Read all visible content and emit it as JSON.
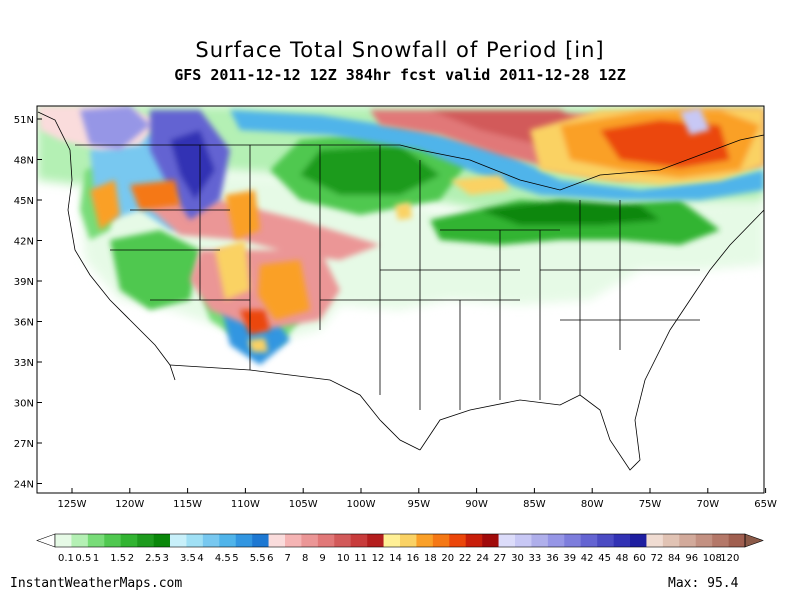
{
  "title": "Surface Total Snowfall of Period [in]",
  "subtitle": "GFS 2011-12-12 12Z 384hr fcst valid 2011-12-28 12Z",
  "footer": {
    "source": "InstantWeatherMaps.com",
    "max_label": "Max:",
    "max_value": "95.4"
  },
  "axes": {
    "lat_labels": [
      "51N",
      "48N",
      "45N",
      "42N",
      "39N",
      "36N",
      "33N",
      "30N",
      "27N",
      "24N"
    ],
    "lon_labels": [
      "125W",
      "120W",
      "115W",
      "110W",
      "105W",
      "100W",
      "95W",
      "90W",
      "85W",
      "80W",
      "75W",
      "70W",
      "65W"
    ]
  },
  "colorbar": {
    "levels": [
      "0.1",
      "0.5",
      "1",
      "1.5",
      "2",
      "2.5",
      "3",
      "3.5",
      "4",
      "4.5",
      "5",
      "5.5",
      "6",
      "7",
      "8",
      "9",
      "10",
      "11",
      "12",
      "14",
      "16",
      "18",
      "20",
      "22",
      "24",
      "27",
      "30",
      "33",
      "36",
      "39",
      "42",
      "45",
      "48",
      "60",
      "72",
      "84",
      "96",
      "108",
      "120"
    ],
    "colors": [
      "#e6fae6",
      "#b4f0b4",
      "#78dc78",
      "#50c850",
      "#32b432",
      "#1e9b1e",
      "#0a870a",
      "#c8f0fa",
      "#a0e0f5",
      "#78c8f0",
      "#50b4ea",
      "#3296e1",
      "#1e78d2",
      "#fadcdc",
      "#f5b4b4",
      "#eb9696",
      "#e17878",
      "#d25a5a",
      "#c83c3c",
      "#b41e1e",
      "#fff096",
      "#fad264",
      "#faa028",
      "#f57814",
      "#eb460a",
      "#c81e0a",
      "#a00a0a",
      "#dcdcfa",
      "#c8c8f5",
      "#afafeb",
      "#9696e6",
      "#7d7ddc",
      "#6464d2",
      "#4b4bc3",
      "#3232b4",
      "#1e1ea0",
      "#f0dcd2",
      "#e1c3b4",
      "#d2aa9b",
      "#c39182",
      "#b47869",
      "#a05f50"
    ],
    "under_color": "#ffffff",
    "over_color": "#8b5a48"
  }
}
